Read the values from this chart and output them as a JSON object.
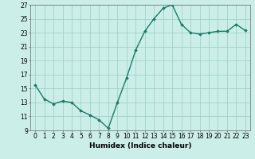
{
  "x": [
    0,
    1,
    2,
    3,
    4,
    5,
    6,
    7,
    8,
    9,
    10,
    11,
    12,
    13,
    14,
    15,
    16,
    17,
    18,
    19,
    20,
    21,
    22,
    23
  ],
  "y": [
    15.5,
    13.5,
    12.8,
    13.2,
    13.0,
    11.8,
    11.2,
    10.5,
    9.3,
    13.0,
    16.5,
    20.5,
    23.2,
    25.0,
    26.5,
    27.0,
    24.2,
    23.0,
    22.8,
    23.0,
    23.2,
    23.2,
    24.2,
    23.3
  ],
  "line_color": "#1a7a6a",
  "marker": "D",
  "marker_size": 1.8,
  "bg_color": "#cceee8",
  "grid_color": "#99ccc5",
  "xlabel": "Humidex (Indice chaleur)",
  "xlim": [
    -0.5,
    23.5
  ],
  "ylim": [
    9,
    27
  ],
  "yticks": [
    9,
    11,
    13,
    15,
    17,
    19,
    21,
    23,
    25,
    27
  ],
  "xticks": [
    0,
    1,
    2,
    3,
    4,
    5,
    6,
    7,
    8,
    9,
    10,
    11,
    12,
    13,
    14,
    15,
    16,
    17,
    18,
    19,
    20,
    21,
    22,
    23
  ],
  "tick_label_size": 5.5,
  "xlabel_size": 6.5,
  "line_width": 1.0
}
